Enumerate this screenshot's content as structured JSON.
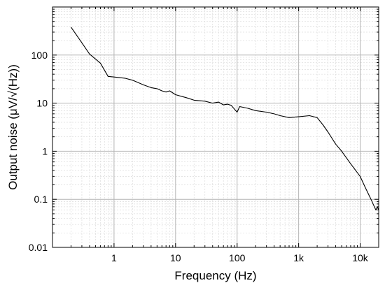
{
  "chart_data": {
    "type": "line",
    "title": "",
    "xlabel": "Frequency (Hz)",
    "ylabel": "Output noise (μV/√(Hz))",
    "x_scale": "log",
    "y_scale": "log",
    "xlim": [
      0.1,
      20000
    ],
    "ylim": [
      0.01,
      1000
    ],
    "grid": true,
    "legend": "none",
    "x_ticks": [
      {
        "value": 1,
        "label": "1"
      },
      {
        "value": 10,
        "label": "10"
      },
      {
        "value": 100,
        "label": "100"
      },
      {
        "value": 1000,
        "label": "1k"
      },
      {
        "value": 10000,
        "label": "10k"
      }
    ],
    "y_ticks": [
      {
        "value": 0.01,
        "label": "0.01"
      },
      {
        "value": 0.1,
        "label": "0.1"
      },
      {
        "value": 1,
        "label": "1"
      },
      {
        "value": 10,
        "label": "10"
      },
      {
        "value": 100,
        "label": "100"
      }
    ],
    "series": [
      {
        "color": "#000000",
        "x": [
          0.2,
          0.3,
          0.4,
          0.6,
          0.8,
          1.0,
          1.5,
          2,
          3,
          4,
          5,
          6,
          7,
          8,
          10,
          15,
          20,
          30,
          40,
          50,
          60,
          70,
          80,
          100,
          110,
          150,
          200,
          300,
          400,
          500,
          700,
          1000,
          1500,
          2000,
          2500,
          3000,
          4000,
          5000,
          7000,
          10000,
          12000,
          15000,
          17000,
          18000,
          19000,
          20000
        ],
        "y": [
          380,
          180,
          105,
          68,
          36,
          35,
          33,
          30,
          24,
          21,
          20,
          18,
          17,
          18,
          15,
          13,
          11.5,
          11,
          10,
          10.5,
          9.2,
          9.5,
          9.0,
          6.5,
          8.5,
          7.8,
          7.0,
          6.5,
          6.0,
          5.5,
          5.0,
          5.2,
          5.5,
          5.0,
          3.5,
          2.5,
          1.4,
          1.0,
          0.55,
          0.3,
          0.18,
          0.1,
          0.07,
          0.06,
          0.07,
          0.06
        ]
      }
    ]
  }
}
